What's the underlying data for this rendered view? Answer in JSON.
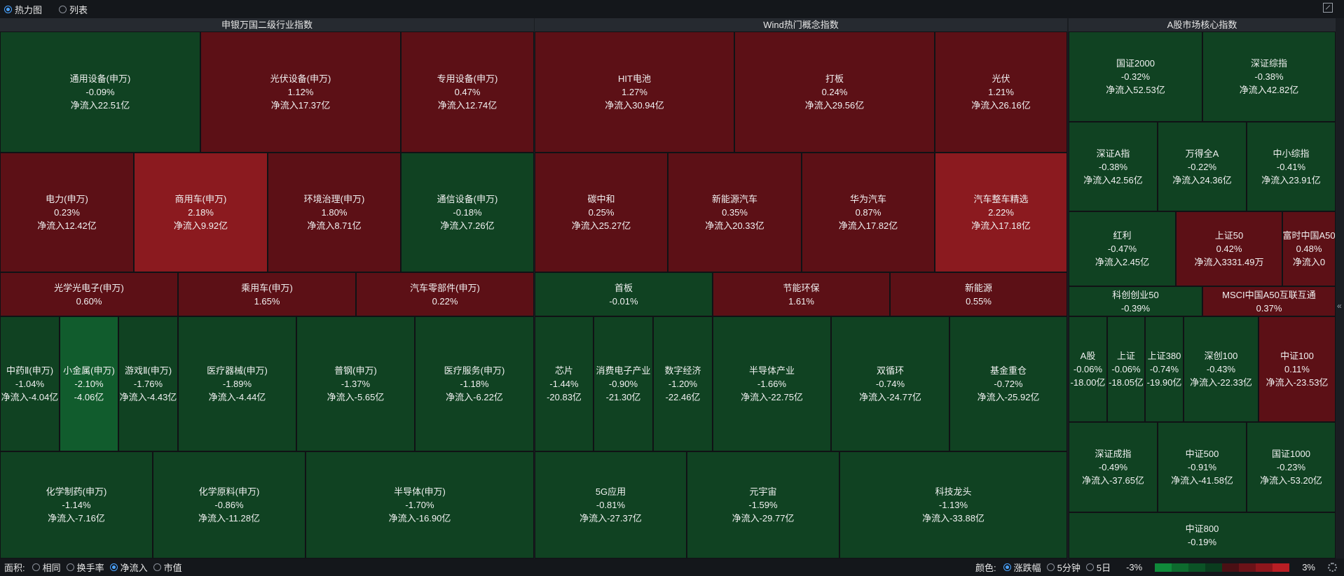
{
  "view_toggle": {
    "heatmap": "热力图",
    "list": "列表",
    "selected": "heatmap"
  },
  "panels": [
    {
      "title": "申银万国二级行业指数"
    },
    {
      "title": "Wind热门概念指数"
    },
    {
      "title": "A股市场核心指数"
    }
  ],
  "tiles": [
    {
      "name": "通用设备(申万)",
      "change": "-0.09%",
      "flow": "净流入22.51亿",
      "color": "g1"
    },
    {
      "name": "光伏设备(申万)",
      "change": "1.12%",
      "flow": "净流入17.37亿",
      "color": "r1"
    },
    {
      "name": "专用设备(申万)",
      "change": "0.47%",
      "flow": "净流入12.74亿",
      "color": "r1"
    },
    {
      "name": "电力(申万)",
      "change": "0.23%",
      "flow": "净流入12.42亿",
      "color": "r1"
    },
    {
      "name": "商用车(申万)",
      "change": "2.18%",
      "flow": "净流入9.92亿",
      "color": "r3"
    },
    {
      "name": "环境治理(申万)",
      "change": "1.80%",
      "flow": "净流入8.71亿",
      "color": "r1"
    },
    {
      "name": "通信设备(申万)",
      "change": "-0.18%",
      "flow": "净流入7.26亿",
      "color": "g1"
    },
    {
      "name": "光学光电子(申万)",
      "change": "0.60%",
      "flow": "",
      "color": "r1"
    },
    {
      "name": "乘用车(申万)",
      "change": "1.65%",
      "flow": "",
      "color": "r1"
    },
    {
      "name": "汽车零部件(申万)",
      "change": "0.22%",
      "flow": "",
      "color": "r1"
    },
    {
      "name": "中药Ⅱ(申万)",
      "change": "-1.04%",
      "flow": "净流入-4.04亿",
      "color": "g1"
    },
    {
      "name": "小金属(申万)",
      "change": "-2.10%",
      "flow": "-4.06亿",
      "color": "g2"
    },
    {
      "name": "游戏Ⅱ(申万)",
      "change": "-1.76%",
      "flow": "净流入-4.43亿",
      "color": "g1"
    },
    {
      "name": "医疗器械(申万)",
      "change": "-1.89%",
      "flow": "净流入-4.44亿",
      "color": "g1"
    },
    {
      "name": "普钢(申万)",
      "change": "-1.37%",
      "flow": "净流入-5.65亿",
      "color": "g1"
    },
    {
      "name": "医疗服务(申万)",
      "change": "-1.18%",
      "flow": "净流入-6.22亿",
      "color": "g1"
    },
    {
      "name": "化学制药(申万)",
      "change": "-1.14%",
      "flow": "净流入-7.16亿",
      "color": "g1"
    },
    {
      "name": "化学原料(申万)",
      "change": "-0.86%",
      "flow": "净流入-11.28亿",
      "color": "g1"
    },
    {
      "name": "半导体(申万)",
      "change": "-1.70%",
      "flow": "净流入-16.90亿",
      "color": "g1"
    },
    {
      "name": "HIT电池",
      "change": "1.27%",
      "flow": "净流入30.94亿",
      "color": "r1"
    },
    {
      "name": "打板",
      "change": "0.24%",
      "flow": "净流入29.56亿",
      "color": "r1"
    },
    {
      "name": "光伏",
      "change": "1.21%",
      "flow": "净流入26.16亿",
      "color": "r1"
    },
    {
      "name": "碳中和",
      "change": "0.25%",
      "flow": "净流入25.27亿",
      "color": "r1"
    },
    {
      "name": "新能源汽车",
      "change": "0.35%",
      "flow": "净流入20.33亿",
      "color": "r1"
    },
    {
      "name": "华为汽车",
      "change": "0.87%",
      "flow": "净流入17.82亿",
      "color": "r1"
    },
    {
      "name": "汽车整车精选",
      "change": "2.22%",
      "flow": "净流入17.18亿",
      "color": "r3"
    },
    {
      "name": "首板",
      "change": "-0.01%",
      "flow": "",
      "color": "g1"
    },
    {
      "name": "节能环保",
      "change": "1.61%",
      "flow": "",
      "color": "r1"
    },
    {
      "name": "新能源",
      "change": "0.55%",
      "flow": "",
      "color": "r1"
    },
    {
      "name": "芯片",
      "change": "-1.44%",
      "flow": "-20.83亿",
      "color": "g1"
    },
    {
      "name": "消费电子产业",
      "change": "-0.90%",
      "flow": "-21.30亿",
      "color": "g1"
    },
    {
      "name": "数字经济",
      "change": "-1.20%",
      "flow": "-22.46亿",
      "color": "g1"
    },
    {
      "name": "半导体产业",
      "change": "-1.66%",
      "flow": "净流入-22.75亿",
      "color": "g1"
    },
    {
      "name": "双循环",
      "change": "-0.74%",
      "flow": "净流入-24.77亿",
      "color": "g1"
    },
    {
      "name": "基金重仓",
      "change": "-0.72%",
      "flow": "净流入-25.92亿",
      "color": "g1"
    },
    {
      "name": "5G应用",
      "change": "-0.81%",
      "flow": "净流入-27.37亿",
      "color": "g1"
    },
    {
      "name": "元宇宙",
      "change": "-1.59%",
      "flow": "净流入-29.77亿",
      "color": "g1"
    },
    {
      "name": "科技龙头",
      "change": "-1.13%",
      "flow": "净流入-33.88亿",
      "color": "g1"
    },
    {
      "name": "国证2000",
      "change": "-0.32%",
      "flow": "净流入52.53亿",
      "color": "g1"
    },
    {
      "name": "深证综指",
      "change": "-0.38%",
      "flow": "净流入42.82亿",
      "color": "g1"
    },
    {
      "name": "深证A指",
      "change": "-0.38%",
      "flow": "净流入42.56亿",
      "color": "g1"
    },
    {
      "name": "万得全A",
      "change": "-0.22%",
      "flow": "净流入24.36亿",
      "color": "g1"
    },
    {
      "name": "中小综指",
      "change": "-0.41%",
      "flow": "净流入23.91亿",
      "color": "g1"
    },
    {
      "name": "红利",
      "change": "-0.47%",
      "flow": "净流入2.45亿",
      "color": "g1"
    },
    {
      "name": "上证50",
      "change": "0.42%",
      "flow": "净流入3331.49万",
      "color": "r1"
    },
    {
      "name": "富时中国A50",
      "change": "0.48%",
      "flow": "净流入0",
      "color": "r1"
    },
    {
      "name": "科创创业50",
      "change": "-0.39%",
      "flow": "",
      "color": "g1"
    },
    {
      "name": "MSCI中国A50互联互通",
      "change": "0.37%",
      "flow": "",
      "color": "r1"
    },
    {
      "name": "A股",
      "change": "-0.06%",
      "flow": "-18.00亿",
      "color": "g1"
    },
    {
      "name": "上证",
      "change": "-0.06%",
      "flow": "-18.05亿",
      "color": "g1"
    },
    {
      "name": "上证380",
      "change": "-0.74%",
      "flow": "-19.90亿",
      "color": "g1"
    },
    {
      "name": "深创100",
      "change": "-0.43%",
      "flow": "净流入-22.33亿",
      "color": "g1"
    },
    {
      "name": "中证100",
      "change": "0.11%",
      "flow": "净流入-23.53亿",
      "color": "r1"
    },
    {
      "name": "深证成指",
      "change": "-0.49%",
      "flow": "净流入-37.65亿",
      "color": "g1"
    },
    {
      "name": "中证500",
      "change": "-0.91%",
      "flow": "净流入-41.58亿",
      "color": "g1"
    },
    {
      "name": "国证1000",
      "change": "-0.23%",
      "flow": "净流入-53.20亿",
      "color": "g1"
    },
    {
      "name": "中证800",
      "change": "-0.19%",
      "flow": "",
      "color": "g1"
    }
  ],
  "bottom": {
    "area_label": "面积:",
    "area_options": [
      "相同",
      "换手率",
      "净流入",
      "市值"
    ],
    "area_selected": 2,
    "color_label": "颜色:",
    "color_options": [
      "涨跌幅",
      "5分钟",
      "5日"
    ],
    "color_selected": 0,
    "legend_min": "-3%",
    "legend_max": "3%",
    "legend_colors": [
      "#0f8a3a",
      "#0d6b2e",
      "#0b5326",
      "#0a3c1e",
      "#4a0f14",
      "#6b1218",
      "#8e161c",
      "#b81e24"
    ]
  },
  "side_handle": "«"
}
